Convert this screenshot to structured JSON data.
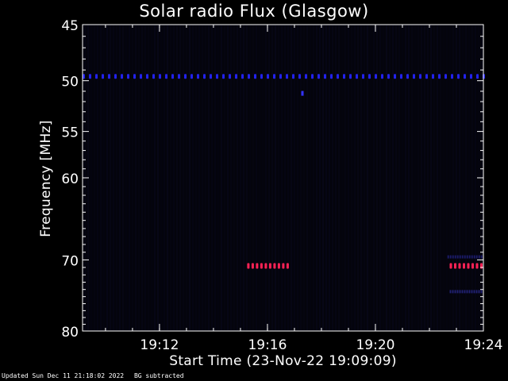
{
  "chart_data": {
    "type": "heatmap",
    "title": "Solar radio Flux (Glasgow)",
    "xlabel": "Start Time (23-Nov-22 19:09:09)",
    "ylabel": "Frequency [MHz]",
    "start_time": "19:09:09",
    "end_time": "19:24:00",
    "xlim": [
      "19:09:09",
      "19:24:00"
    ],
    "ylim": [
      45,
      80
    ],
    "y_scale": "log",
    "y_inverted": true,
    "x_ticks": [
      "19:12",
      "19:16",
      "19:20",
      "19:24"
    ],
    "y_ticks": [
      45,
      50,
      55,
      60,
      70,
      80
    ],
    "features": [
      {
        "kind": "dotted_band",
        "freq_mhz": 49.6,
        "start": "19:09:09",
        "end": "19:24:00",
        "intensity": "low",
        "color": "#2222ee"
      },
      {
        "kind": "spot",
        "freq_mhz": 51.2,
        "start": "19:17:15",
        "end": "19:17:20",
        "intensity": "low",
        "color": "#3333ff"
      },
      {
        "kind": "dotted_band",
        "freq_mhz": 70.8,
        "start": "19:15:15",
        "end": "19:16:45",
        "intensity": "high",
        "color": "#ff2255"
      },
      {
        "kind": "dotted_band",
        "freq_mhz": 70.8,
        "start": "19:22:45",
        "end": "19:24:00",
        "intensity": "high",
        "color": "#ff2255"
      },
      {
        "kind": "faint_band",
        "freq_mhz": 69.6,
        "start": "19:22:40",
        "end": "19:24:00",
        "intensity": "very_low",
        "color": "#1a1a66"
      },
      {
        "kind": "faint_band",
        "freq_mhz": 74.3,
        "start": "19:22:45",
        "end": "19:24:00",
        "intensity": "very_low",
        "color": "#202070"
      }
    ]
  },
  "footer": {
    "updated": "Updated Sun Dec 11 21:18:02 2022",
    "note": "BG subtracted"
  }
}
